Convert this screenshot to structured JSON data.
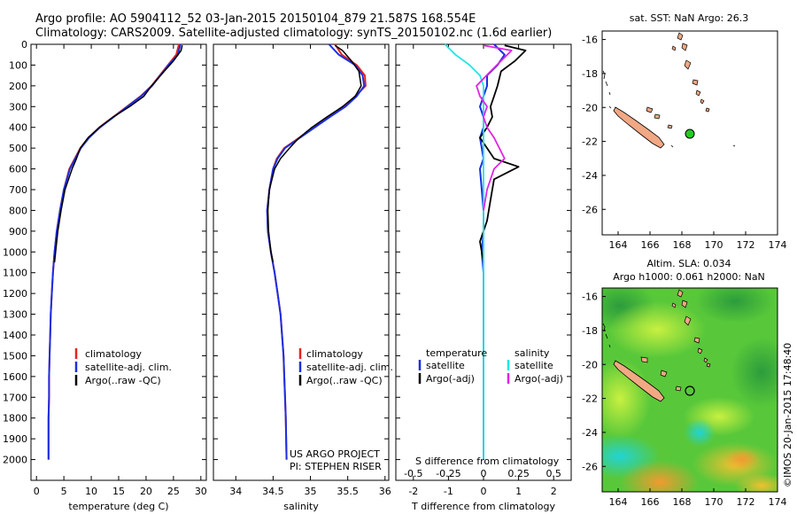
{
  "header": {
    "line1": "Argo profile: AO 5904112_52 03-Jan-2015 20150104_879 21.587S 168.554E",
    "line2": "Climatology: CARS2009. Satellite-adjusted climatology: synTS_20150102.nc (1.6d earlier)"
  },
  "colors": {
    "climatology": "#e8211b",
    "satellite": "#1a2ee6",
    "argo": "#000000",
    "salinity_satellite": "#22e5e5",
    "salinity_argo": "#e322e3",
    "land": "#f2a884",
    "argo_marker": "#22cc22"
  },
  "annotations": {
    "project": "US ARGO PROJECT",
    "pi": "PI: STEPHEN RISER",
    "credit": "©IMOS 20-Jan-2015 17:48:40"
  },
  "chart_data": [
    {
      "type": "line",
      "panel": "temperature",
      "xlabel": "temperature (deg C)",
      "ylabel": "",
      "xlim": [
        -1,
        31
      ],
      "ylim": [
        2100,
        0
      ],
      "xticks": [
        0,
        5,
        10,
        15,
        20,
        25,
        30
      ],
      "yticks": [
        0,
        100,
        200,
        300,
        400,
        500,
        600,
        700,
        800,
        900,
        1000,
        1100,
        1200,
        1300,
        1400,
        1500,
        1600,
        1700,
        1800,
        1900,
        2000
      ],
      "legend": [
        "climatology",
        "satellite-adj. clim.",
        "Argo(..raw -QC)"
      ],
      "series": [
        {
          "name": "climatology",
          "x": [
            26.0,
            25.5,
            24.0,
            22.5,
            21.0,
            19.0,
            16.5,
            14.0,
            11.5,
            9.5,
            8.0,
            7.0,
            6.0,
            5.0,
            4.3,
            3.7,
            3.3,
            3.0,
            2.8,
            2.6,
            2.5,
            2.4,
            2.3,
            2.3,
            2.2,
            2.2
          ],
          "y": [
            0,
            50,
            100,
            150,
            200,
            250,
            300,
            350,
            400,
            450,
            500,
            550,
            600,
            700,
            800,
            900,
            1000,
            1100,
            1200,
            1300,
            1400,
            1500,
            1600,
            1700,
            1800,
            2000
          ]
        },
        {
          "name": "satellite-adj. clim.",
          "x": [
            26.3,
            25.8,
            24.1,
            22.6,
            21.1,
            19.1,
            16.6,
            14.1,
            11.6,
            9.6,
            8.1,
            7.1,
            6.1,
            5.0,
            4.3,
            3.7,
            3.3,
            3.0,
            2.8,
            2.6,
            2.5,
            2.4,
            2.3,
            2.3,
            2.2,
            2.2
          ],
          "y": [
            0,
            50,
            100,
            150,
            200,
            250,
            300,
            350,
            400,
            450,
            500,
            550,
            600,
            700,
            800,
            900,
            1000,
            1100,
            1200,
            1300,
            1400,
            1500,
            1600,
            1700,
            1800,
            2000
          ]
        },
        {
          "name": "Argo(..raw -QC)",
          "x": [
            26.6,
            26.4,
            25.0,
            23.3,
            21.0,
            19.6,
            17.0,
            14.0,
            11.5,
            9.4,
            8.0,
            7.3,
            6.5,
            5.2,
            4.5,
            3.9,
            3.5,
            3.3
          ],
          "y": [
            5,
            30,
            80,
            130,
            200,
            250,
            300,
            350,
            400,
            450,
            500,
            550,
            600,
            700,
            800,
            900,
            1000,
            1050
          ]
        }
      ]
    },
    {
      "type": "line",
      "panel": "salinity",
      "xlabel": "salinity",
      "ylabel": "",
      "xlim": [
        33.7,
        36.05
      ],
      "ylim": [
        2100,
        0
      ],
      "xticks": [
        34,
        34.5,
        35,
        35.5,
        36
      ],
      "legend": [
        "climatology",
        "satellite-adj. clim.",
        "Argo(..raw -QC)"
      ],
      "series": [
        {
          "name": "climatology",
          "x": [
            35.33,
            35.42,
            35.62,
            35.73,
            35.74,
            35.6,
            35.45,
            35.25,
            35.05,
            34.85,
            34.65,
            34.55,
            34.5,
            34.45,
            34.42,
            34.43,
            34.47,
            34.52,
            34.56,
            34.6,
            34.62,
            34.64,
            34.65,
            34.66,
            34.67,
            34.68
          ],
          "y": [
            0,
            50,
            100,
            150,
            200,
            250,
            300,
            350,
            400,
            450,
            500,
            550,
            600,
            700,
            800,
            900,
            1000,
            1100,
            1200,
            1300,
            1400,
            1500,
            1600,
            1700,
            1800,
            2000
          ]
        },
        {
          "name": "satellite-adj. clim.",
          "x": [
            35.25,
            35.38,
            35.6,
            35.7,
            35.72,
            35.62,
            35.47,
            35.26,
            35.06,
            34.86,
            34.66,
            34.56,
            34.5,
            34.45,
            34.42,
            34.43,
            34.47,
            34.52,
            34.56,
            34.6,
            34.62,
            34.64,
            34.65,
            34.66,
            34.67,
            34.68
          ],
          "y": [
            0,
            50,
            100,
            150,
            200,
            250,
            300,
            350,
            400,
            450,
            500,
            550,
            600,
            700,
            800,
            900,
            1000,
            1100,
            1200,
            1300,
            1400,
            1500,
            1600,
            1700,
            1800,
            2000
          ]
        },
        {
          "name": "Argo(..raw -QC)",
          "x": [
            35.33,
            35.43,
            35.55,
            35.65,
            35.68,
            35.6,
            35.43,
            35.22,
            35.02,
            34.85,
            34.72,
            34.6,
            34.52,
            34.45,
            34.43,
            34.44,
            34.47,
            34.5
          ],
          "y": [
            5,
            30,
            80,
            130,
            200,
            250,
            300,
            350,
            400,
            450,
            500,
            550,
            600,
            700,
            800,
            900,
            1000,
            1050
          ]
        }
      ]
    },
    {
      "type": "line",
      "panel": "difference",
      "xlabel": "T difference from climatology",
      "x2label": "S difference from climatology",
      "xlim": [
        -2.5,
        2.5
      ],
      "ylim": [
        2100,
        0
      ],
      "xticks": [
        -2,
        -1,
        0,
        1,
        2
      ],
      "x2ticks": [
        "-0.5",
        "-0.25",
        "0",
        "0.25",
        "0.5"
      ],
      "x2tick_positions": [
        -2,
        -1,
        0,
        1,
        2
      ],
      "legend": [
        "temperature",
        "satellite",
        "Argo(-adj)",
        "salinity",
        "satellite",
        "Argo(-adj)"
      ],
      "series": [
        {
          "name": "temperature satellite",
          "x": [
            0.3,
            0.6,
            0.4,
            0.1,
            0.1,
            0.0,
            -0.1,
            0.0,
            0.0,
            -0.1,
            -0.05,
            0.0,
            -0.1,
            -0.05,
            0.0,
            0.0,
            -0.05,
            0.0,
            0.0,
            0.0,
            0.0
          ],
          "y": [
            0,
            50,
            100,
            150,
            200,
            250,
            300,
            350,
            400,
            450,
            500,
            550,
            600,
            700,
            800,
            900,
            1000,
            1100,
            1300,
            1600,
            2000
          ]
        },
        {
          "name": "temperature Argo(-adj)",
          "x": [
            0.6,
            1.2,
            0.9,
            0.5,
            0.4,
            0.3,
            0.2,
            0.25,
            0.1,
            -0.1,
            0.1,
            0.3,
            1.0,
            0.3,
            0.2,
            0.1,
            -0.1,
            0.0
          ],
          "y": [
            5,
            30,
            80,
            130,
            200,
            250,
            300,
            350,
            400,
            450,
            500,
            550,
            590,
            650,
            750,
            850,
            950,
            1050
          ]
        },
        {
          "name": "salinity satellite",
          "x": [
            -1.1,
            -0.8,
            -0.4,
            -0.1,
            0.0,
            0.0,
            0.0,
            0.0,
            0.0,
            0.0,
            0.0,
            0.0,
            0.0,
            0.0
          ],
          "y": [
            0,
            50,
            100,
            150,
            200,
            300,
            400,
            500,
            600,
            800,
            1000,
            1300,
            1600,
            2000
          ]
        },
        {
          "name": "salinity Argo(-adj)",
          "x": [
            0.0,
            0.8,
            0.5,
            0.2,
            -0.2,
            -0.1,
            0.1,
            0.0,
            0.1,
            0.3,
            0.6,
            0.3,
            0.1,
            0.0
          ],
          "y": [
            5,
            30,
            80,
            130,
            200,
            250,
            300,
            350,
            400,
            450,
            550,
            600,
            700,
            800
          ]
        }
      ]
    },
    {
      "type": "scatter",
      "panel": "map_sst",
      "title": "sat. SST: NaN Argo: 26.3",
      "xlim": [
        163,
        174
      ],
      "ylim": [
        -27.5,
        -15.5
      ],
      "xticks": [
        164,
        166,
        168,
        170,
        172,
        174
      ],
      "yticks": [
        -16,
        -18,
        -20,
        -22,
        -24,
        -26
      ],
      "points": [
        {
          "x": 168.554,
          "y": -21.587
        }
      ]
    },
    {
      "type": "heatmap",
      "panel": "map_sla",
      "title": "Altim. SLA: 0.034",
      "subtitle": "Argo h1000: 0.061 h2000: NaN",
      "xlim": [
        163,
        174
      ],
      "ylim": [
        -27.5,
        -15.5
      ],
      "xticks": [
        164,
        166,
        168,
        170,
        172,
        174
      ],
      "yticks": [
        -16,
        -18,
        -20,
        -22,
        -24,
        -26
      ],
      "points": [
        {
          "x": 168.554,
          "y": -21.587
        }
      ]
    }
  ]
}
